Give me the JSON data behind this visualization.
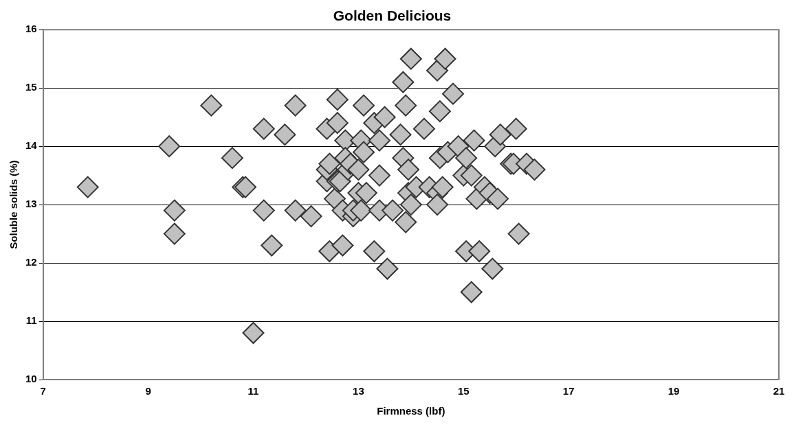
{
  "chart_data": {
    "type": "scatter",
    "title": "Golden Delicious",
    "xlabel": "Firmness (lbf)",
    "ylabel": "Soluble solids (%)",
    "x": [
      7.85,
      9.4,
      9.5,
      9.5,
      10.2,
      10.6,
      10.8,
      10.85,
      11.0,
      11.2,
      11.2,
      11.35,
      11.6,
      11.8,
      11.8,
      12.1,
      12.4,
      12.4,
      12.4,
      12.45,
      12.45,
      12.55,
      12.6,
      12.6,
      12.6,
      12.65,
      12.7,
      12.7,
      12.75,
      12.75,
      12.8,
      12.85,
      12.9,
      12.9,
      13.0,
      13.0,
      13.05,
      13.05,
      13.1,
      13.1,
      13.15,
      13.3,
      13.3,
      13.4,
      13.4,
      13.4,
      13.5,
      13.55,
      13.65,
      13.8,
      13.85,
      13.85,
      13.9,
      13.9,
      13.95,
      13.95,
      14.0,
      14.0,
      14.1,
      14.25,
      14.35,
      14.5,
      14.5,
      14.5,
      14.55,
      14.55,
      14.6,
      14.65,
      14.7,
      14.8,
      14.9,
      15.0,
      15.05,
      15.05,
      15.15,
      15.15,
      15.2,
      15.25,
      15.3,
      15.4,
      15.5,
      15.55,
      15.6,
      15.65,
      15.7,
      15.9,
      15.95,
      16.0,
      16.05,
      16.2,
      16.35
    ],
    "series": [
      {
        "color": "#c0c0c0",
        "values": [
          13.3,
          14.0,
          12.9,
          12.5,
          14.7,
          13.8,
          13.3,
          13.3,
          10.8,
          12.9,
          14.3,
          12.3,
          14.2,
          14.7,
          12.9,
          12.8,
          14.3,
          13.4,
          13.6,
          13.7,
          12.2,
          13.1,
          14.8,
          14.4,
          13.4,
          13.4,
          12.3,
          12.9,
          14.1,
          13.8,
          13.6,
          13.7,
          12.8,
          12.9,
          13.6,
          13.2,
          12.9,
          14.1,
          14.7,
          13.9,
          13.2,
          12.2,
          14.4,
          13.5,
          12.9,
          14.1,
          14.5,
          11.9,
          12.9,
          14.2,
          15.1,
          13.8,
          12.7,
          14.7,
          13.6,
          13.2,
          15.5,
          13.0,
          13.3,
          14.3,
          13.3,
          13.2,
          13.0,
          15.3,
          14.6,
          13.8,
          13.3,
          15.5,
          13.9,
          14.9,
          14.0,
          13.5,
          12.2,
          13.8,
          11.5,
          13.5,
          14.1,
          13.1,
          12.2,
          13.3,
          13.2,
          11.9,
          14.0,
          13.1,
          14.2,
          13.7,
          13.7,
          14.3,
          12.5,
          13.7,
          13.6
        ]
      }
    ],
    "xlim": [
      7,
      21
    ],
    "xticks": [
      7,
      9,
      11,
      13,
      15,
      17,
      19,
      21
    ],
    "ylim": [
      10,
      16
    ],
    "yticks": [
      10,
      11,
      12,
      13,
      14,
      15,
      16
    ],
    "grid": "y",
    "legend": false,
    "marker": "diamond"
  }
}
